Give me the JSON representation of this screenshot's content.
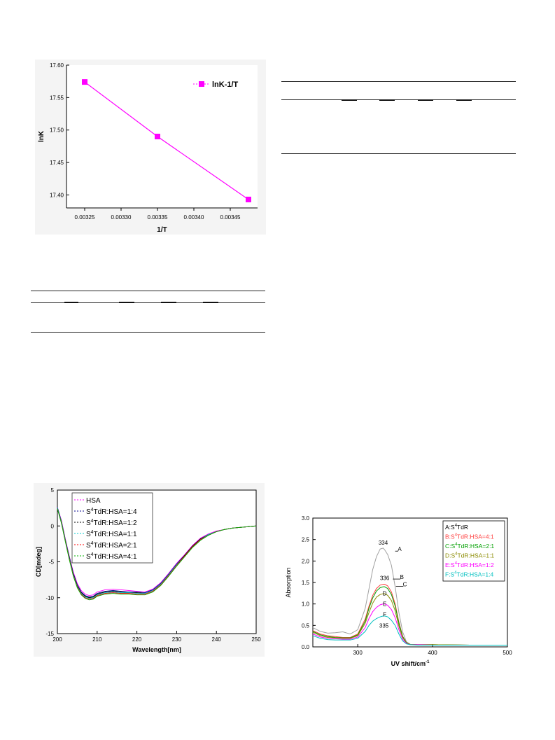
{
  "chart_data": [
    {
      "type": "line",
      "xlabel": "1/T",
      "ylabel": "lnK",
      "xlim": [
        0.0032,
        0.0035
      ],
      "ylim": [
        17.38,
        17.6
      ],
      "xticks": [
        "0.00325",
        "0.00330",
        "0.00335",
        "0.00340",
        "0.00345"
      ],
      "yticks": [
        "17.40",
        "17.45",
        "17.50",
        "17.55",
        "17.60"
      ],
      "legend_position": "top-right",
      "series": [
        {
          "name": "lnK-1/T",
          "color": "#ff00ff",
          "marker": "square",
          "x": [
            0.00325,
            0.00335,
            0.003475
          ],
          "y": [
            17.574,
            17.49,
            17.393
          ]
        }
      ]
    },
    {
      "type": "line",
      "xlabel": "Wavelength[nm]",
      "ylabel": "CD[mdeg]",
      "xlim": [
        200,
        250
      ],
      "ylim": [
        -15,
        5
      ],
      "xticks": [
        "200",
        "210",
        "220",
        "230",
        "240",
        "250"
      ],
      "yticks": [
        "5",
        "0",
        "-5",
        "-10",
        "-15"
      ],
      "legend_position": "top-left",
      "x": [
        200,
        201,
        202,
        203,
        204,
        205,
        206,
        207,
        208,
        209,
        210,
        212,
        214,
        216,
        218,
        220,
        222,
        224,
        226,
        228,
        230,
        232,
        234,
        236,
        238,
        240,
        242,
        244,
        246,
        248,
        250
      ],
      "series": [
        {
          "name": "HSA",
          "color": "#ff00ff",
          "values": [
            2.6,
            0.8,
            -1.8,
            -4.2,
            -6.4,
            -8.0,
            -9.0,
            -9.5,
            -9.7,
            -9.6,
            -9.2,
            -8.9,
            -8.8,
            -8.9,
            -9.0,
            -9.1,
            -9.2,
            -8.8,
            -7.9,
            -6.6,
            -5.2,
            -4.0,
            -2.7,
            -1.7,
            -1.1,
            -0.7,
            -0.5,
            -0.3,
            -0.2,
            -0.1,
            0.0
          ]
        },
        {
          "name": "S4TdR:HSA=1:4",
          "color": "#00008b",
          "values": [
            2.6,
            0.7,
            -1.9,
            -4.3,
            -6.6,
            -8.2,
            -9.2,
            -9.7,
            -9.9,
            -9.8,
            -9.4,
            -9.1,
            -9.0,
            -9.1,
            -9.2,
            -9.2,
            -9.3,
            -8.9,
            -8.0,
            -6.7,
            -5.3,
            -4.1,
            -2.8,
            -1.8,
            -1.2,
            -0.8,
            -0.5,
            -0.3,
            -0.2,
            -0.1,
            0.0
          ]
        },
        {
          "name": "S4TdR:HSA=1:2",
          "color": "#000000",
          "values": [
            2.5,
            0.6,
            -2.0,
            -4.4,
            -6.7,
            -8.3,
            -9.3,
            -9.8,
            -10.0,
            -9.9,
            -9.5,
            -9.2,
            -9.1,
            -9.2,
            -9.3,
            -9.3,
            -9.4,
            -9.0,
            -8.1,
            -6.8,
            -5.4,
            -4.1,
            -2.8,
            -1.8,
            -1.2,
            -0.8,
            -0.5,
            -0.3,
            -0.2,
            -0.1,
            0.0
          ]
        },
        {
          "name": "S4TdR:HSA=1:1",
          "color": "#00ced1",
          "values": [
            2.5,
            0.6,
            -2.0,
            -4.5,
            -6.8,
            -8.4,
            -9.4,
            -9.9,
            -10.1,
            -10.0,
            -9.6,
            -9.3,
            -9.2,
            -9.3,
            -9.3,
            -9.4,
            -9.4,
            -9.0,
            -8.1,
            -6.8,
            -5.4,
            -4.2,
            -2.9,
            -1.9,
            -1.2,
            -0.8,
            -0.5,
            -0.3,
            -0.2,
            -0.1,
            0.0
          ]
        },
        {
          "name": "S4TdR:HSA=2:1",
          "color": "#ff0000",
          "values": [
            2.4,
            0.5,
            -2.1,
            -4.6,
            -6.9,
            -8.5,
            -9.5,
            -10.0,
            -10.2,
            -10.1,
            -9.7,
            -9.4,
            -9.3,
            -9.4,
            -9.4,
            -9.5,
            -9.5,
            -9.1,
            -8.2,
            -6.9,
            -5.5,
            -4.2,
            -2.9,
            -1.9,
            -1.3,
            -0.8,
            -0.5,
            -0.3,
            -0.2,
            -0.1,
            0.0
          ]
        },
        {
          "name": "S4TdR:HSA=4:1",
          "color": "#00b000",
          "values": [
            2.4,
            0.4,
            -2.2,
            -4.7,
            -7.0,
            -8.6,
            -9.6,
            -10.1,
            -10.3,
            -10.2,
            -9.8,
            -9.5,
            -9.4,
            -9.5,
            -9.5,
            -9.6,
            -9.6,
            -9.2,
            -8.3,
            -7.0,
            -5.6,
            -4.3,
            -3.0,
            -2.0,
            -1.3,
            -0.8,
            -0.5,
            -0.3,
            -0.2,
            -0.1,
            0.0
          ]
        }
      ]
    },
    {
      "type": "line",
      "xlabel": "UV shift/cm",
      "xlabel_sup": "-1",
      "ylabel": "Absorption",
      "xlim": [
        240,
        500
      ],
      "ylim": [
        0,
        3
      ],
      "xticks": [
        "300",
        "400",
        "500"
      ],
      "yticks": [
        "3.0",
        "2.5",
        "2.0",
        "1.5",
        "1.0",
        "0.5",
        "0.0"
      ],
      "legend_position": "top-right",
      "x": [
        240,
        250,
        260,
        270,
        280,
        290,
        300,
        310,
        315,
        320,
        325,
        330,
        334,
        336,
        340,
        345,
        350,
        355,
        360,
        365,
        370,
        380,
        400,
        450,
        500
      ],
      "series": [
        {
          "name": "A:S4TdR",
          "color": "#a0a0a0",
          "values": [
            0.45,
            0.36,
            0.32,
            0.33,
            0.35,
            0.3,
            0.4,
            0.9,
            1.35,
            1.8,
            2.1,
            2.28,
            2.3,
            2.26,
            2.15,
            1.9,
            1.4,
            0.8,
            0.35,
            0.12,
            0.06,
            0.05,
            0.05,
            0.04,
            0.04
          ]
        },
        {
          "name": "B:S4TdR:HSA=4:1",
          "color": "#ff4040",
          "values": [
            0.38,
            0.3,
            0.26,
            0.24,
            0.22,
            0.22,
            0.3,
            0.65,
            0.95,
            1.2,
            1.36,
            1.44,
            1.46,
            1.46,
            1.42,
            1.28,
            1.0,
            0.58,
            0.25,
            0.1,
            0.06,
            0.05,
            0.05,
            0.04,
            0.04
          ]
        },
        {
          "name": "C:S4TdR:HSA=2:1",
          "color": "#00a000",
          "values": [
            0.36,
            0.28,
            0.24,
            0.22,
            0.21,
            0.21,
            0.28,
            0.6,
            0.9,
            1.14,
            1.3,
            1.38,
            1.4,
            1.4,
            1.36,
            1.22,
            0.95,
            0.55,
            0.24,
            0.1,
            0.06,
            0.05,
            0.05,
            0.04,
            0.04
          ]
        },
        {
          "name": "D:S4TdR:HSA=1:1",
          "color": "#8b8b00",
          "values": [
            0.34,
            0.26,
            0.22,
            0.21,
            0.2,
            0.2,
            0.26,
            0.55,
            0.8,
            1.02,
            1.16,
            1.22,
            1.24,
            1.24,
            1.2,
            1.08,
            0.84,
            0.48,
            0.22,
            0.09,
            0.06,
            0.05,
            0.05,
            0.04,
            0.04
          ]
        },
        {
          "name": "E:S4TdR:HSA=1:2",
          "color": "#ff00ff",
          "values": [
            0.3,
            0.23,
            0.2,
            0.19,
            0.18,
            0.18,
            0.23,
            0.45,
            0.66,
            0.82,
            0.92,
            0.98,
            1.0,
            1.0,
            0.97,
            0.87,
            0.68,
            0.4,
            0.18,
            0.08,
            0.05,
            0.05,
            0.04,
            0.04,
            0.04
          ]
        },
        {
          "name": "F:S4TdR:HSA=1:4",
          "color": "#00c0c0",
          "values": [
            0.26,
            0.2,
            0.17,
            0.16,
            0.16,
            0.16,
            0.2,
            0.36,
            0.5,
            0.6,
            0.66,
            0.7,
            0.72,
            0.72,
            0.7,
            0.62,
            0.5,
            0.3,
            0.14,
            0.07,
            0.05,
            0.04,
            0.04,
            0.04,
            0.04
          ]
        }
      ],
      "annotations": [
        {
          "text": "334",
          "x": 334,
          "y": 2.38
        },
        {
          "text": "A",
          "x": 356,
          "y": 2.23
        },
        {
          "text": "336",
          "x": 336,
          "y": 1.56
        },
        {
          "text": "B",
          "x": 359,
          "y": 1.58
        },
        {
          "text": "C",
          "x": 363,
          "y": 1.41
        },
        {
          "text": "D",
          "x": 336,
          "y": 1.2
        },
        {
          "text": "E",
          "x": 336,
          "y": 0.95
        },
        {
          "text": "F",
          "x": 336,
          "y": 0.71
        },
        {
          "text": "335",
          "x": 335,
          "y": 0.45
        }
      ]
    }
  ],
  "legend_superscript": "4"
}
